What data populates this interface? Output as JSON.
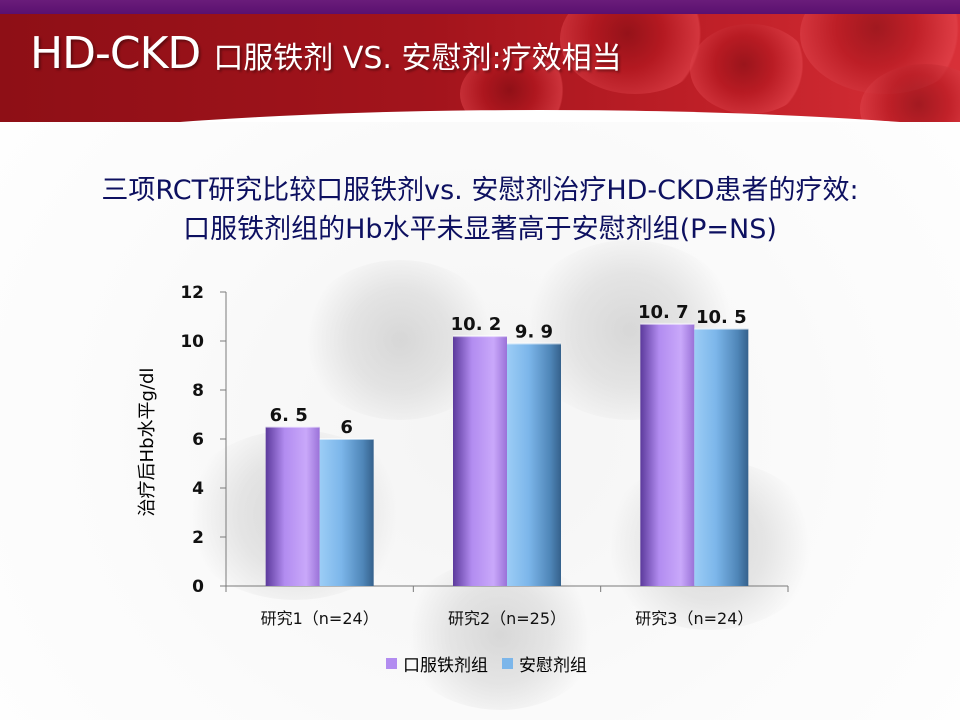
{
  "slide": {
    "title_main": "HD-CKD",
    "title_rest": "口服铁剂 VS. 安慰剂:疗效相当",
    "subtitle_line1": "三项RCT研究比较口服铁剂vs. 安慰剂治疗HD-CKD患者的疗效:",
    "subtitle_line2": "口服铁剂组的Hb水平未显著高于安慰剂组(P=NS)"
  },
  "colors": {
    "oral_iron": "#b28cf0",
    "placebo": "#7cb6ea",
    "title_text": "#0d1060"
  },
  "chart_data": {
    "type": "bar",
    "categories": [
      "研究1（n=24）",
      "研究2（n=25）",
      "研究3（n=24）"
    ],
    "series": [
      {
        "name": "口服铁剂组",
        "values": [
          6.5,
          10.2,
          10.7
        ],
        "labels": [
          "6. 5",
          "10. 2",
          "10. 7"
        ]
      },
      {
        "name": "安慰剂组",
        "values": [
          6,
          9.9,
          10.5
        ],
        "labels": [
          "6",
          "9. 9",
          "10. 5"
        ]
      }
    ],
    "xlabel": "",
    "ylabel": "治疗后Hb水平g/dl",
    "ylim": [
      0,
      12
    ],
    "yticks": [
      0,
      2,
      4,
      6,
      8,
      10,
      12
    ],
    "grid": false,
    "legend_position": "bottom-center"
  }
}
